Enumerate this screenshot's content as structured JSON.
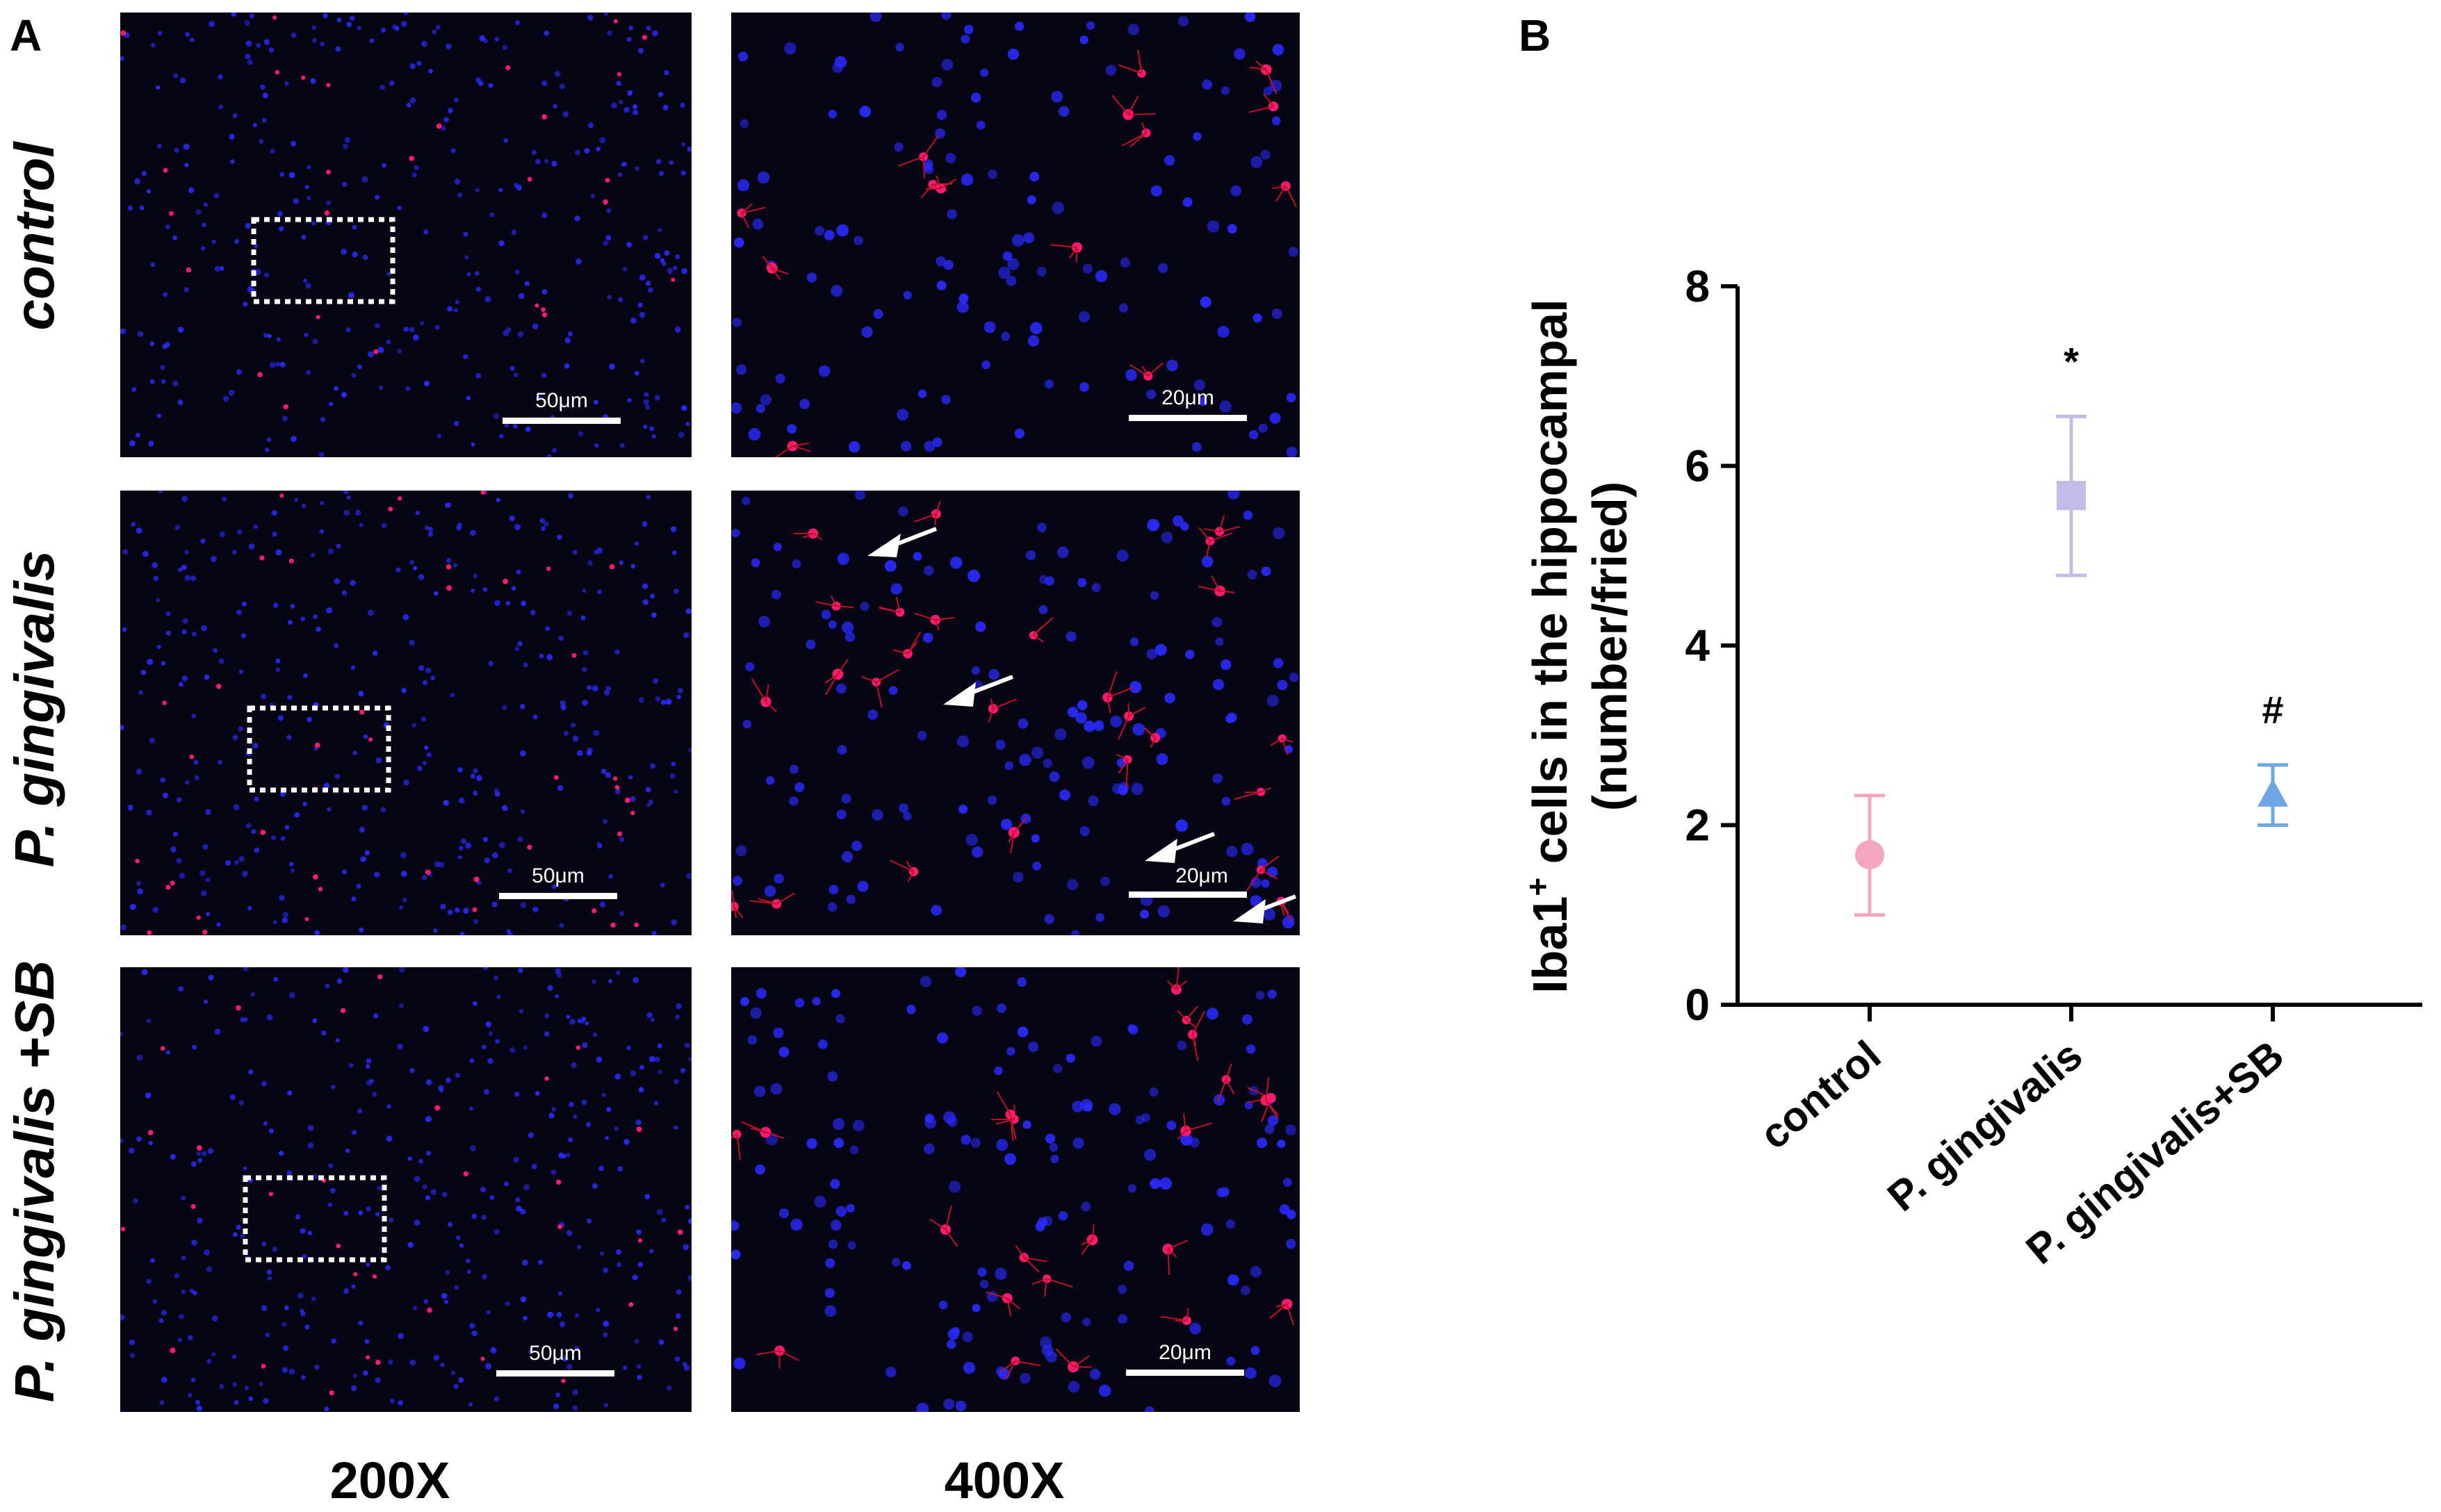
{
  "panel_a": {
    "letter": "A",
    "rows": [
      {
        "label": "control",
        "arrows": 0,
        "scale_left": "50μm",
        "scale_right": "20μm"
      },
      {
        "label": "P. gingivalis",
        "arrows": 4,
        "scale_left": "50μm",
        "scale_right": "20μm"
      },
      {
        "label": "P. gingivalis +SB",
        "arrows": 0,
        "scale_left": "50μm",
        "scale_right": "20μm"
      }
    ],
    "columns": [
      "200X",
      "400X"
    ],
    "colors": {
      "background": "#050514",
      "nuclei": "#2a2aff",
      "iba1": "#ff1a6e",
      "annotation": "#ffffff"
    }
  },
  "panel_b": {
    "letter": "B",
    "chart_data": {
      "type": "scatter",
      "categories": [
        "control",
        "P. gingivalis",
        "P. gingivalis+SB"
      ],
      "ylabel_line1": "Iba1",
      "ylabel_sup": "+",
      "ylabel_line1_rest": " cells in the hippocampal",
      "ylabel_line2": "(number/fried)",
      "ylim": [
        0,
        8
      ],
      "yticks": [
        0,
        2,
        4,
        6,
        8
      ],
      "series": [
        {
          "category": "control",
          "mean": 1.67,
          "err_low": 1.0,
          "err_high": 2.33,
          "marker": "circle",
          "color": "#f4a6c0",
          "annotation": ""
        },
        {
          "category": "P. gingivalis",
          "mean": 5.67,
          "err_low": 4.78,
          "err_high": 6.55,
          "marker": "square",
          "color": "#c4bce8",
          "annotation": "*"
        },
        {
          "category": "P. gingivalis+SB",
          "mean": 2.33,
          "err_low": 2.0,
          "err_high": 2.67,
          "marker": "triangle",
          "color": "#6fa6e6",
          "annotation": "#"
        }
      ]
    }
  }
}
